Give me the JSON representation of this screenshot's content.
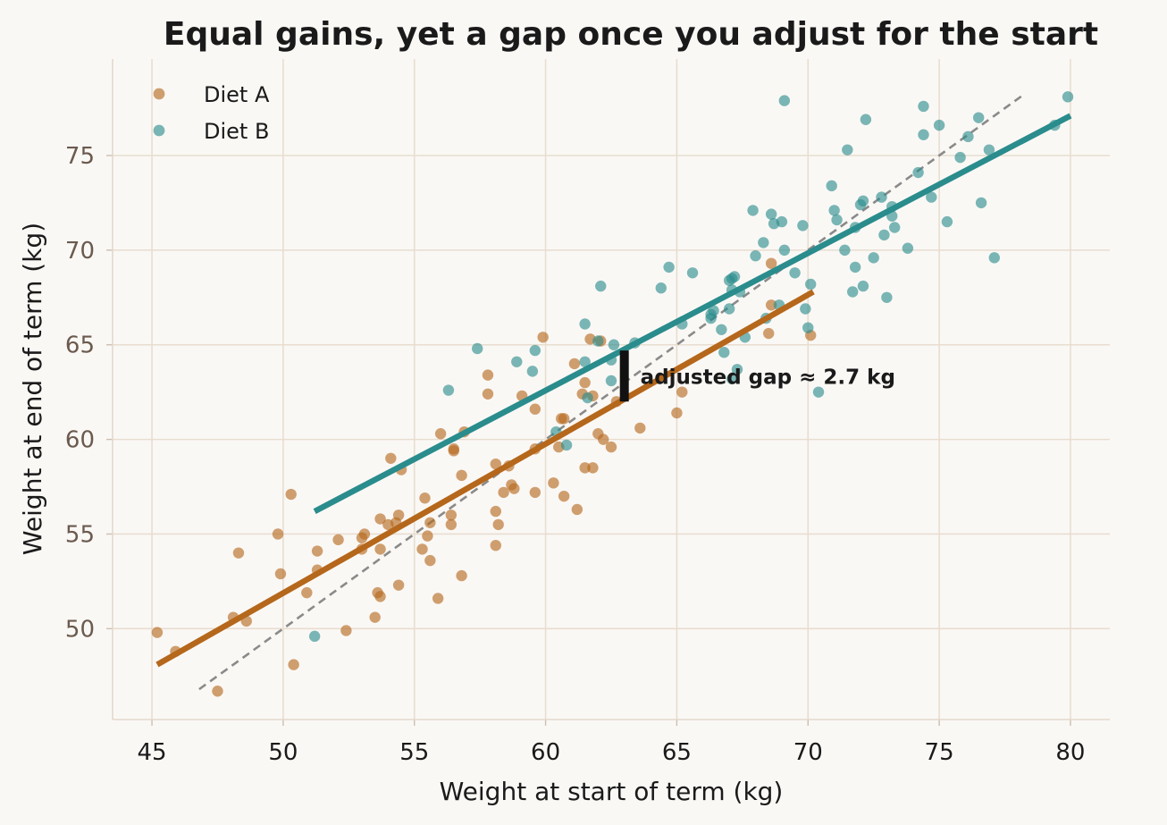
{
  "chart_data": {
    "type": "scatter",
    "title": "Equal gains, yet a gap once you adjust for the start",
    "xlabel": "Weight at start of term (kg)",
    "ylabel": "Weight at end of term (kg)",
    "xlim": [
      43.5,
      81.5
    ],
    "ylim": [
      45.2,
      80.1
    ],
    "xticks": [
      45,
      50,
      55,
      60,
      65,
      70,
      75,
      80
    ],
    "yticks": [
      50,
      55,
      60,
      65,
      70,
      75
    ],
    "grid": true,
    "legend_position": "top-left",
    "series": [
      {
        "name": "Diet A",
        "color": "#b5671b",
        "points": [
          [
            45.2,
            49.8
          ],
          [
            45.9,
            48.8
          ],
          [
            47.5,
            46.7
          ],
          [
            48.1,
            50.6
          ],
          [
            48.3,
            54.0
          ],
          [
            48.6,
            50.4
          ],
          [
            49.8,
            55.0
          ],
          [
            49.9,
            52.9
          ],
          [
            50.3,
            57.1
          ],
          [
            50.4,
            48.1
          ],
          [
            50.9,
            51.9
          ],
          [
            51.3,
            53.1
          ],
          [
            51.3,
            54.1
          ],
          [
            52.1,
            54.7
          ],
          [
            52.4,
            49.9
          ],
          [
            53.0,
            54.2
          ],
          [
            53.0,
            54.8
          ],
          [
            53.1,
            55.0
          ],
          [
            53.5,
            50.6
          ],
          [
            53.6,
            51.9
          ],
          [
            53.7,
            51.7
          ],
          [
            53.7,
            54.2
          ],
          [
            53.7,
            55.8
          ],
          [
            54.0,
            55.5
          ],
          [
            54.1,
            59.0
          ],
          [
            54.3,
            55.6
          ],
          [
            54.4,
            52.3
          ],
          [
            54.4,
            56.0
          ],
          [
            54.5,
            58.4
          ],
          [
            55.3,
            54.2
          ],
          [
            55.4,
            56.9
          ],
          [
            55.5,
            54.9
          ],
          [
            55.6,
            53.6
          ],
          [
            55.9,
            51.6
          ],
          [
            55.6,
            55.6
          ],
          [
            56.0,
            60.3
          ],
          [
            56.4,
            56.0
          ],
          [
            56.4,
            55.5
          ],
          [
            56.5,
            59.4
          ],
          [
            56.5,
            59.5
          ],
          [
            56.8,
            52.8
          ],
          [
            56.8,
            58.1
          ],
          [
            56.9,
            60.4
          ],
          [
            57.8,
            62.4
          ],
          [
            57.8,
            63.4
          ],
          [
            58.1,
            54.4
          ],
          [
            58.1,
            56.2
          ],
          [
            58.1,
            58.7
          ],
          [
            58.2,
            55.5
          ],
          [
            58.4,
            57.2
          ],
          [
            58.6,
            58.6
          ],
          [
            58.7,
            57.6
          ],
          [
            58.8,
            57.4
          ],
          [
            59.1,
            62.3
          ],
          [
            59.6,
            57.2
          ],
          [
            59.6,
            59.5
          ],
          [
            59.6,
            61.6
          ],
          [
            59.9,
            65.4
          ],
          [
            60.3,
            57.7
          ],
          [
            60.5,
            59.6
          ],
          [
            60.6,
            61.1
          ],
          [
            60.7,
            61.1
          ],
          [
            60.7,
            57.0
          ],
          [
            61.1,
            64.0
          ],
          [
            61.2,
            56.3
          ],
          [
            61.4,
            62.4
          ],
          [
            61.5,
            58.5
          ],
          [
            61.5,
            63.0
          ],
          [
            61.7,
            65.3
          ],
          [
            61.8,
            58.5
          ],
          [
            61.8,
            62.3
          ],
          [
            62.0,
            60.3
          ],
          [
            62.1,
            65.2
          ],
          [
            62.2,
            60.0
          ],
          [
            62.5,
            59.6
          ],
          [
            62.7,
            62.0
          ],
          [
            63.6,
            60.6
          ],
          [
            65.0,
            61.4
          ],
          [
            65.2,
            62.5
          ],
          [
            68.5,
            65.6
          ],
          [
            68.6,
            67.1
          ],
          [
            68.6,
            69.3
          ],
          [
            70.1,
            65.5
          ]
        ]
      },
      {
        "name": "Diet B",
        "color": "#2a8c8c",
        "points": [
          [
            51.2,
            49.6
          ],
          [
            56.3,
            62.6
          ],
          [
            57.4,
            64.8
          ],
          [
            58.9,
            64.1
          ],
          [
            59.5,
            63.6
          ],
          [
            59.6,
            64.7
          ],
          [
            60.4,
            60.4
          ],
          [
            60.8,
            59.7
          ],
          [
            61.5,
            66.1
          ],
          [
            61.5,
            64.1
          ],
          [
            61.6,
            62.2
          ],
          [
            62.0,
            65.2
          ],
          [
            62.1,
            68.1
          ],
          [
            62.5,
            64.2
          ],
          [
            62.5,
            63.1
          ],
          [
            62.6,
            65.0
          ],
          [
            63.4,
            65.1
          ],
          [
            64.4,
            68.0
          ],
          [
            64.7,
            69.1
          ],
          [
            65.2,
            66.1
          ],
          [
            65.6,
            68.8
          ],
          [
            66.3,
            66.6
          ],
          [
            66.3,
            66.4
          ],
          [
            66.4,
            66.8
          ],
          [
            66.7,
            65.8
          ],
          [
            66.8,
            64.6
          ],
          [
            67.0,
            66.9
          ],
          [
            67.0,
            68.4
          ],
          [
            67.1,
            68.5
          ],
          [
            67.1,
            67.9
          ],
          [
            67.1,
            63.2
          ],
          [
            67.2,
            68.6
          ],
          [
            67.3,
            63.7
          ],
          [
            67.4,
            67.8
          ],
          [
            67.6,
            65.4
          ],
          [
            67.9,
            72.1
          ],
          [
            68.0,
            69.7
          ],
          [
            68.3,
            70.4
          ],
          [
            68.4,
            66.4
          ],
          [
            68.6,
            71.9
          ],
          [
            68.7,
            71.4
          ],
          [
            68.9,
            67.1
          ],
          [
            69.0,
            71.5
          ],
          [
            69.1,
            70.0
          ],
          [
            69.1,
            77.9
          ],
          [
            69.5,
            68.8
          ],
          [
            69.8,
            71.3
          ],
          [
            69.9,
            66.9
          ],
          [
            70.0,
            65.9
          ],
          [
            70.1,
            68.2
          ],
          [
            70.4,
            62.5
          ],
          [
            70.9,
            73.4
          ],
          [
            71.0,
            72.1
          ],
          [
            71.1,
            71.6
          ],
          [
            71.4,
            70.0
          ],
          [
            71.5,
            75.3
          ],
          [
            71.7,
            67.8
          ],
          [
            71.8,
            69.1
          ],
          [
            71.8,
            71.2
          ],
          [
            72.0,
            72.4
          ],
          [
            72.1,
            72.6
          ],
          [
            72.1,
            68.1
          ],
          [
            72.2,
            76.9
          ],
          [
            72.5,
            69.6
          ],
          [
            72.8,
            72.8
          ],
          [
            72.9,
            70.8
          ],
          [
            73.0,
            67.5
          ],
          [
            73.2,
            72.3
          ],
          [
            73.2,
            71.8
          ],
          [
            73.3,
            71.2
          ],
          [
            73.8,
            70.1
          ],
          [
            74.2,
            74.1
          ],
          [
            74.4,
            76.1
          ],
          [
            74.4,
            77.6
          ],
          [
            74.7,
            72.8
          ],
          [
            75.0,
            76.6
          ],
          [
            75.3,
            71.5
          ],
          [
            75.8,
            74.9
          ],
          [
            76.1,
            76.0
          ],
          [
            76.5,
            77.0
          ],
          [
            76.6,
            72.5
          ],
          [
            76.9,
            75.3
          ],
          [
            77.1,
            69.6
          ],
          [
            79.4,
            76.6
          ],
          [
            79.9,
            78.1
          ]
        ]
      }
    ],
    "fit_lines": [
      {
        "series": "Diet A",
        "x": [
          45.2,
          70.2
        ],
        "y": [
          48.1,
          67.8
        ]
      },
      {
        "series": "Diet B",
        "x": [
          51.2,
          80.0
        ],
        "y": [
          56.2,
          77.1
        ]
      }
    ],
    "reference_line": {
      "x": [
        46.8,
        78.2
      ],
      "y": [
        46.8,
        78.2
      ],
      "color": "#8a8a8a"
    },
    "annotation": {
      "text": "adjusted gap ≈ 2.7 kg",
      "x": 63.0,
      "y_from": 62.0,
      "y_to": 64.7,
      "label_y": 63.3
    }
  }
}
